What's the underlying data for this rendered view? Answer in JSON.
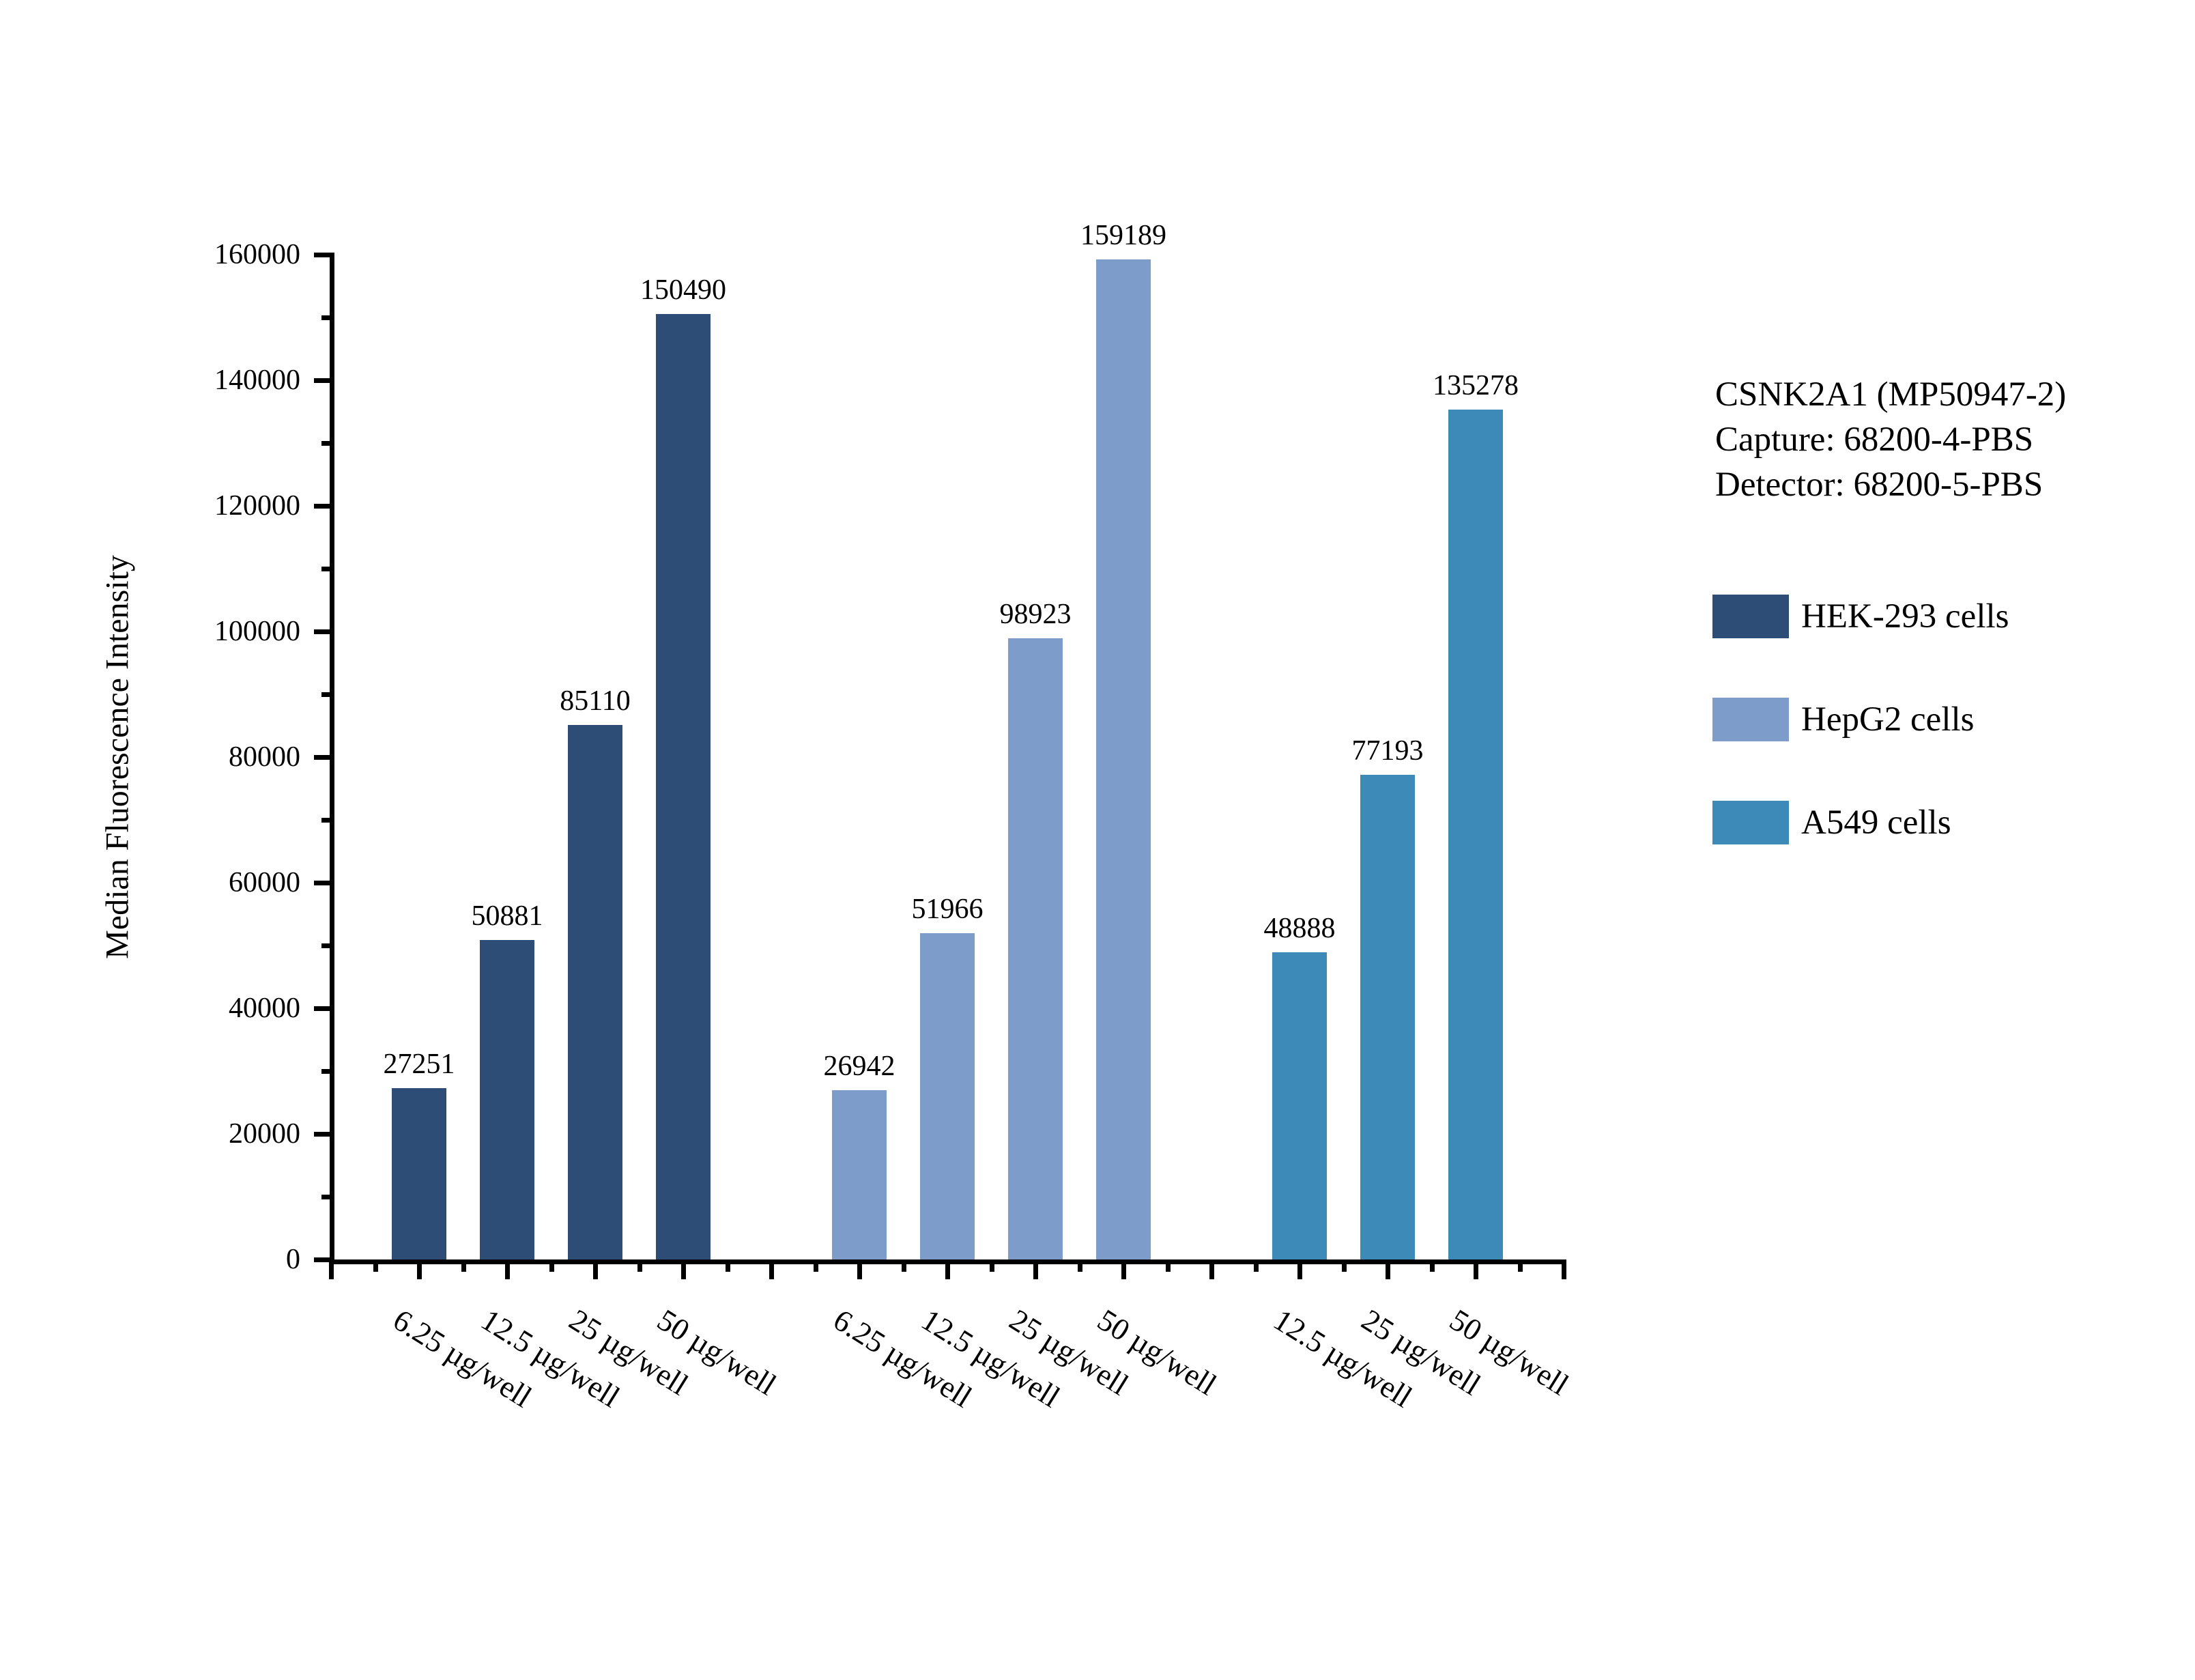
{
  "chart_data": {
    "type": "bar",
    "title": "",
    "xlabel": "",
    "ylabel": "Median Fluorescence Intensity",
    "ylim": [
      0,
      160000
    ],
    "ytick_step": 20000,
    "yticks": [
      0,
      20000,
      40000,
      60000,
      80000,
      100000,
      120000,
      140000,
      160000
    ],
    "grid": false,
    "legend_position": "right-outside",
    "bar_value_labels": true,
    "groups": [
      {
        "name": "HEK-293 cells",
        "color": "#2E4D76",
        "categories": [
          "6.25 µg/well",
          "12.5 µg/well",
          "25 µg/well",
          "50 µg/well"
        ],
        "values": [
          27251,
          50881,
          85110,
          150490
        ]
      },
      {
        "name": "HepG2 cells",
        "color": "#7D9CCA",
        "categories": [
          "6.25 µg/well",
          "12.5 µg/well",
          "25 µg/well",
          "50 µg/well"
        ],
        "values": [
          26942,
          51966,
          98923,
          159189
        ]
      },
      {
        "name": "A549 cells",
        "color": "#3D89B7",
        "categories": [
          "12.5 µg/well",
          "25 µg/well",
          "50 µg/well"
        ],
        "values": [
          48888,
          77193,
          135278
        ]
      }
    ]
  },
  "annotation": {
    "lines": [
      "CSNK2A1 (MP50947-2)",
      "Capture: 68200-4-PBS",
      "Detector: 68200-5-PBS"
    ]
  },
  "legend": {
    "items": [
      {
        "label": "HEK-293 cells",
        "color": "#2E4D76"
      },
      {
        "label": "HepG2 cells",
        "color": "#7D9CCA"
      },
      {
        "label": "A549 cells",
        "color": "#3D89B7"
      }
    ]
  }
}
